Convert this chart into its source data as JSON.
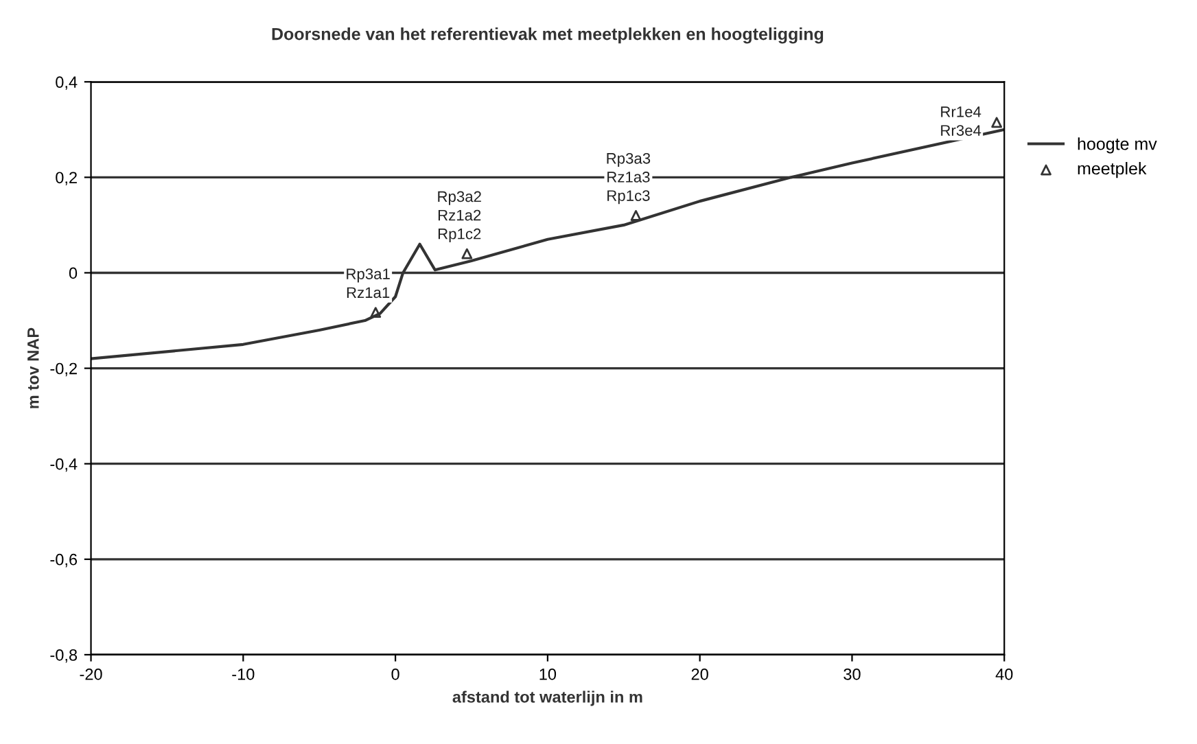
{
  "chart_data": {
    "type": "line",
    "title": "Doorsnede van het referentievak met meetplekken en hoogteligging",
    "xlabel": "afstand tot waterlijn in m",
    "ylabel": "m tov NAP",
    "series": [
      {
        "name": "hoogte mv",
        "color": "#333333",
        "marker": "none",
        "x": [
          -20,
          -10,
          -5,
          -2,
          -1,
          0,
          0.5,
          1.6,
          2.6,
          5,
          10,
          15,
          20,
          26,
          30,
          40
        ],
        "values": [
          -0.18,
          -0.15,
          -0.12,
          -0.1,
          -0.085,
          -0.05,
          0,
          0.06,
          0.006,
          0.025,
          0.07,
          0.1,
          0.15,
          0.2,
          0.23,
          0.3
        ]
      },
      {
        "name": "meetplek",
        "type": "scatter",
        "color": "#333333",
        "marker": "triangle",
        "x": [
          -1.3,
          4.7,
          15.8,
          39.5
        ],
        "values": [
          -0.083,
          0.04,
          0.12,
          0.315
        ]
      }
    ],
    "annotations": [
      {
        "text": "Rp3a1\nRz1a1",
        "x": -1.3,
        "y": -0.083
      },
      {
        "text": "Rp3a2\nRz1a2\nRp1c2",
        "x": 4.7,
        "y": 0.04
      },
      {
        "text": "Rp3a3\nRz1a3\nRp1c3",
        "x": 15.8,
        "y": 0.12
      },
      {
        "text": "Rr1e4\nRr3e4",
        "x": 39.5,
        "y": 0.315
      }
    ],
    "xlim": [
      -20,
      40
    ],
    "xticks": [
      -20,
      -10,
      0,
      10,
      20,
      30,
      40
    ],
    "ylim": [
      -0.8,
      0.4
    ],
    "yticks": [
      {
        "value": -0.8,
        "label": "-0,8"
      },
      {
        "value": -0.6,
        "label": "-0,6"
      },
      {
        "value": -0.4,
        "label": "-0,4"
      },
      {
        "value": -0.2,
        "label": "-0,2"
      },
      {
        "value": 0,
        "label": "0"
      },
      {
        "value": 0.2,
        "label": "0,2"
      },
      {
        "value": 0.4,
        "label": "0,4"
      }
    ],
    "grid": "y",
    "legend": "right"
  }
}
